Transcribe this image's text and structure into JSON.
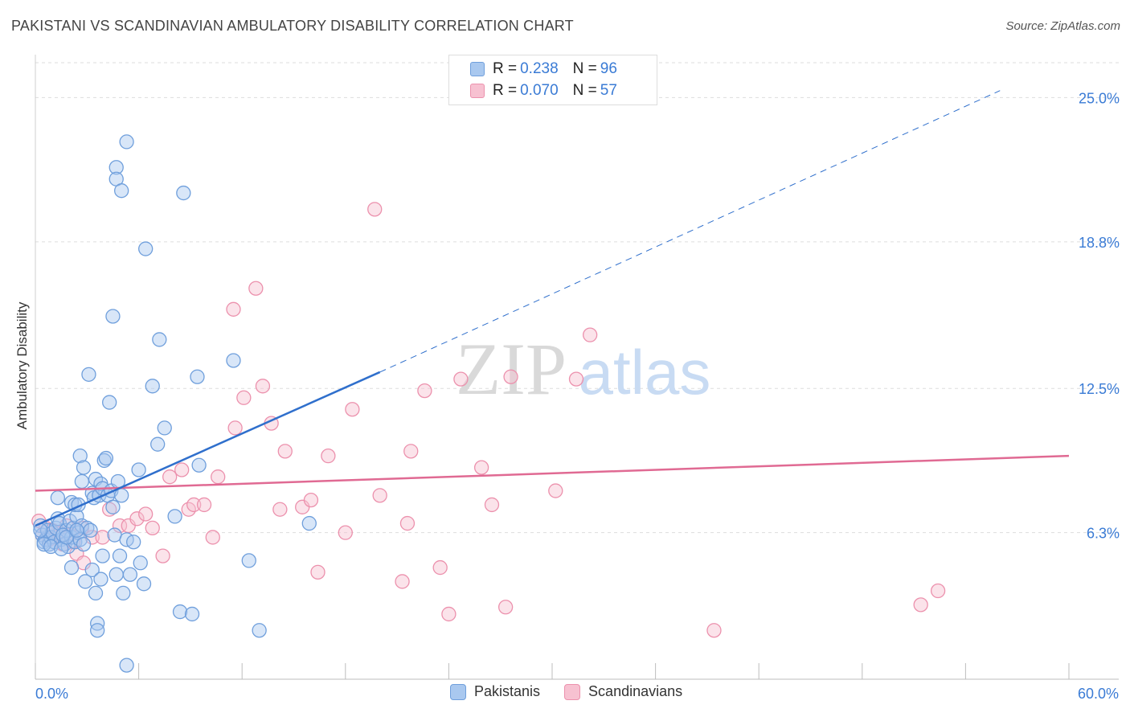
{
  "header": {
    "title": "PAKISTANI VS SCANDINAVIAN AMBULATORY DISABILITY CORRELATION CHART",
    "source": "Source: ZipAtlas.com"
  },
  "watermark": {
    "zip": "ZIP",
    "atlas": "atlas"
  },
  "legend": {
    "rows": [
      {
        "r_label": "R = ",
        "r_value": "0.238",
        "n_label": "N = ",
        "n_value": "96"
      },
      {
        "r_label": "R = ",
        "r_value": "0.070",
        "n_label": "N = ",
        "n_value": "57"
      }
    ]
  },
  "colors": {
    "pakistanis_fill": "#a9c8ef",
    "pakistanis_stroke": "#6f9fdc",
    "pakistanis_line": "#2f6fcc",
    "scandinavians_fill": "#f7c1d1",
    "scandinavians_stroke": "#ec91ad",
    "scandinavians_line": "#e06a93",
    "tick_label": "#3a7bd5",
    "grid": "#dddddd"
  },
  "chart_data": {
    "type": "scatter",
    "title": "PAKISTANI VS SCANDINAVIAN AMBULATORY DISABILITY CORRELATION CHART",
    "xlabel": "",
    "ylabel": "Ambulatory Disability",
    "xlim": [
      0,
      60
    ],
    "ylim": [
      0,
      26.5
    ],
    "x_tick_labels": [
      "0.0%",
      "60.0%"
    ],
    "y_ticks": [
      6.3,
      12.5,
      18.8,
      25.0
    ],
    "y_tick_labels": [
      "6.3%",
      "12.5%",
      "18.8%",
      "25.0%"
    ],
    "grid": "horizontal dashed",
    "legend_position": "top-center",
    "series": [
      {
        "name": "Pakistanis",
        "R": 0.238,
        "N": 96,
        "trend": {
          "x": [
            0,
            20
          ],
          "y": [
            6.6,
            13.2
          ],
          "extended_x": [
            20,
            56
          ],
          "extended_y": [
            13.2,
            25.3
          ]
        },
        "points": [
          [
            0.3,
            6.6
          ],
          [
            0.4,
            6.2
          ],
          [
            0.5,
            5.9
          ],
          [
            0.6,
            6.0
          ],
          [
            0.7,
            6.4
          ],
          [
            0.8,
            5.8
          ],
          [
            0.9,
            6.1
          ],
          [
            1.0,
            6.3
          ],
          [
            1.1,
            5.9
          ],
          [
            1.2,
            6.5
          ],
          [
            1.3,
            6.9
          ],
          [
            1.4,
            6.7
          ],
          [
            1.5,
            6.0
          ],
          [
            1.6,
            6.2
          ],
          [
            1.7,
            5.8
          ],
          [
            1.8,
            6.4
          ],
          [
            1.9,
            5.7
          ],
          [
            2.0,
            6.8
          ],
          [
            2.1,
            6.1
          ],
          [
            2.2,
            6.5
          ],
          [
            2.3,
            5.9
          ],
          [
            2.4,
            7.0
          ],
          [
            2.5,
            6.3
          ],
          [
            2.6,
            6.0
          ],
          [
            2.7,
            6.6
          ],
          [
            2.8,
            5.8
          ],
          [
            0.5,
            5.8
          ],
          [
            0.9,
            5.7
          ],
          [
            1.5,
            5.6
          ],
          [
            0.3,
            6.4
          ],
          [
            1.3,
            7.8
          ],
          [
            1.6,
            6.2
          ],
          [
            2.1,
            7.6
          ],
          [
            2.3,
            7.5
          ],
          [
            2.5,
            7.5
          ],
          [
            2.6,
            9.6
          ],
          [
            2.7,
            8.5
          ],
          [
            2.8,
            9.1
          ],
          [
            3.0,
            6.5
          ],
          [
            3.2,
            6.4
          ],
          [
            3.3,
            8.0
          ],
          [
            3.4,
            7.8
          ],
          [
            3.5,
            8.6
          ],
          [
            3.7,
            7.9
          ],
          [
            3.8,
            8.4
          ],
          [
            3.9,
            8.2
          ],
          [
            4.0,
            9.4
          ],
          [
            4.1,
            9.5
          ],
          [
            4.2,
            7.9
          ],
          [
            4.4,
            8.1
          ],
          [
            4.5,
            7.4
          ],
          [
            4.6,
            6.2
          ],
          [
            4.8,
            8.5
          ],
          [
            5.0,
            7.9
          ],
          [
            5.3,
            6.0
          ],
          [
            3.1,
            13.1
          ],
          [
            3.3,
            4.7
          ],
          [
            3.5,
            3.7
          ],
          [
            3.6,
            2.4
          ],
          [
            3.8,
            4.3
          ],
          [
            3.9,
            5.3
          ],
          [
            4.3,
            11.9
          ],
          [
            4.5,
            15.6
          ],
          [
            4.7,
            4.5
          ],
          [
            4.9,
            5.3
          ],
          [
            5.1,
            3.7
          ],
          [
            5.3,
            0.6
          ],
          [
            5.5,
            4.5
          ],
          [
            5.7,
            5.9
          ],
          [
            6.0,
            9.0
          ],
          [
            6.1,
            5.0
          ],
          [
            6.3,
            4.1
          ],
          [
            6.4,
            18.5
          ],
          [
            6.8,
            12.6
          ],
          [
            7.1,
            10.1
          ],
          [
            7.2,
            14.6
          ],
          [
            7.5,
            10.8
          ],
          [
            8.1,
            7.0
          ],
          [
            8.4,
            2.9
          ],
          [
            8.6,
            20.9
          ],
          [
            9.1,
            2.8
          ],
          [
            9.4,
            13.0
          ],
          [
            9.5,
            9.2
          ],
          [
            4.7,
            22.0
          ],
          [
            4.7,
            21.5
          ],
          [
            5.0,
            21.0
          ],
          [
            5.3,
            23.1
          ],
          [
            11.5,
            13.7
          ],
          [
            12.4,
            5.1
          ],
          [
            13.0,
            2.1
          ],
          [
            15.9,
            6.7
          ],
          [
            2.9,
            4.2
          ],
          [
            3.6,
            2.1
          ],
          [
            2.1,
            4.8
          ],
          [
            1.8,
            6.1
          ],
          [
            2.4,
            6.4
          ]
        ]
      },
      {
        "name": "Scandinavians",
        "R": 0.07,
        "N": 57,
        "trend": {
          "x": [
            0,
            60
          ],
          "y": [
            8.1,
            9.6
          ]
        },
        "points": [
          [
            0.2,
            6.8
          ],
          [
            0.4,
            6.2
          ],
          [
            0.6,
            6.5
          ],
          [
            0.8,
            6.0
          ],
          [
            1.0,
            6.4
          ],
          [
            1.2,
            6.1
          ],
          [
            1.4,
            6.3
          ],
          [
            1.6,
            5.8
          ],
          [
            1.8,
            6.6
          ],
          [
            2.0,
            6.2
          ],
          [
            2.2,
            5.9
          ],
          [
            2.4,
            5.4
          ],
          [
            2.7,
            6.5
          ],
          [
            2.8,
            5.0
          ],
          [
            3.3,
            6.1
          ],
          [
            3.9,
            6.1
          ],
          [
            4.3,
            7.3
          ],
          [
            4.9,
            6.6
          ],
          [
            5.4,
            6.6
          ],
          [
            5.9,
            6.9
          ],
          [
            6.4,
            7.1
          ],
          [
            6.8,
            6.5
          ],
          [
            7.4,
            5.3
          ],
          [
            7.8,
            8.7
          ],
          [
            8.5,
            9.0
          ],
          [
            8.9,
            7.3
          ],
          [
            9.2,
            7.5
          ],
          [
            9.8,
            7.5
          ],
          [
            10.3,
            6.1
          ],
          [
            10.6,
            8.7
          ],
          [
            11.5,
            15.9
          ],
          [
            11.6,
            10.8
          ],
          [
            12.1,
            12.1
          ],
          [
            12.8,
            16.8
          ],
          [
            13.2,
            12.6
          ],
          [
            13.7,
            11.0
          ],
          [
            14.2,
            7.3
          ],
          [
            14.5,
            9.8
          ],
          [
            15.5,
            7.4
          ],
          [
            16.0,
            7.7
          ],
          [
            16.4,
            4.6
          ],
          [
            17.0,
            9.6
          ],
          [
            18.0,
            6.3
          ],
          [
            18.4,
            11.6
          ],
          [
            19.7,
            20.2
          ],
          [
            20.0,
            7.9
          ],
          [
            21.3,
            4.2
          ],
          [
            21.6,
            6.7
          ],
          [
            21.8,
            9.8
          ],
          [
            22.6,
            12.4
          ],
          [
            23.5,
            4.8
          ],
          [
            24.0,
            2.8
          ],
          [
            24.7,
            12.9
          ],
          [
            25.9,
            9.1
          ],
          [
            26.5,
            7.5
          ],
          [
            27.3,
            3.1
          ],
          [
            27.6,
            13.0
          ]
        ],
        "points_more": [
          [
            30.2,
            8.1
          ],
          [
            31.4,
            12.9
          ],
          [
            32.2,
            14.8
          ],
          [
            39.4,
            2.1
          ],
          [
            51.4,
            3.2
          ],
          [
            52.4,
            3.8
          ]
        ]
      }
    ]
  }
}
